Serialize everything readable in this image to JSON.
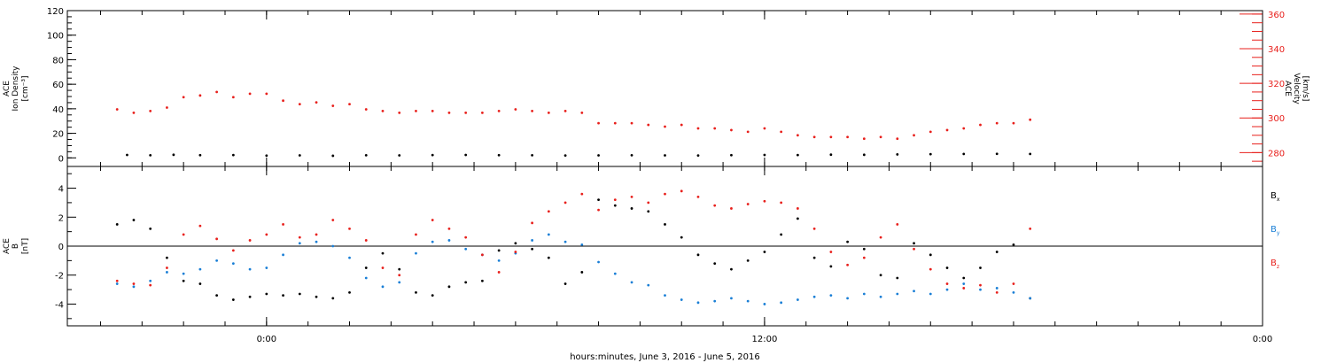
{
  "chart_data": [
    {
      "type": "scatter",
      "ylabel": [
        "ACE",
        "Ion Density",
        "[cm⁻³]"
      ],
      "y2label": [
        "ACE",
        "Velocity",
        "[km/s]"
      ],
      "ylim": [
        -7,
        120
      ],
      "yticks": [
        0,
        20,
        40,
        60,
        80,
        100,
        120
      ],
      "y2lim": [
        272,
        362
      ],
      "y2ticks": [
        280,
        300,
        320,
        340,
        360
      ],
      "series": [
        {
          "color": "#000000",
          "axis": "left",
          "values": [
            [
              -0.42,
              2.4
            ],
            [
              -0.35,
              2.1
            ],
            [
              -0.28,
              2.5
            ],
            [
              -0.2,
              2.2
            ],
            [
              -0.1,
              2.3
            ],
            [
              0.0,
              1.8
            ],
            [
              0.1,
              2.0
            ],
            [
              0.2,
              1.7
            ],
            [
              0.3,
              2.1
            ],
            [
              0.4,
              2.0
            ],
            [
              0.5,
              2.3
            ],
            [
              0.6,
              2.4
            ],
            [
              0.7,
              2.2
            ],
            [
              0.8,
              2.1
            ],
            [
              0.9,
              1.9
            ],
            [
              1.0,
              2.0
            ],
            [
              1.1,
              2.1
            ],
            [
              1.2,
              2.0
            ],
            [
              1.3,
              1.9
            ],
            [
              1.4,
              2.2
            ],
            [
              1.5,
              2.4
            ],
            [
              1.6,
              2.3
            ],
            [
              1.7,
              2.6
            ],
            [
              1.8,
              2.5
            ],
            [
              1.9,
              2.8
            ],
            [
              2.0,
              3.0
            ],
            [
              2.1,
              3.2
            ],
            [
              2.2,
              3.3
            ],
            [
              2.3,
              3.2
            ]
          ]
        },
        {
          "color": "#e8201c",
          "axis": "right",
          "values": [
            [
              -0.45,
              305
            ],
            [
              -0.4,
              303
            ],
            [
              -0.35,
              304
            ],
            [
              -0.3,
              306
            ],
            [
              -0.25,
              312
            ],
            [
              -0.2,
              313
            ],
            [
              -0.15,
              315
            ],
            [
              -0.1,
              312
            ],
            [
              -0.05,
              314
            ],
            [
              0.0,
              314
            ],
            [
              0.05,
              310
            ],
            [
              0.1,
              308
            ],
            [
              0.15,
              309
            ],
            [
              0.2,
              307
            ],
            [
              0.25,
              308
            ],
            [
              0.3,
              305
            ],
            [
              0.35,
              304
            ],
            [
              0.4,
              303
            ],
            [
              0.45,
              304
            ],
            [
              0.5,
              304
            ],
            [
              0.55,
              303
            ],
            [
              0.6,
              303
            ],
            [
              0.65,
              303
            ],
            [
              0.7,
              304
            ],
            [
              0.75,
              305
            ],
            [
              0.8,
              304
            ],
            [
              0.85,
              303
            ],
            [
              0.9,
              304
            ],
            [
              0.95,
              303
            ],
            [
              1.0,
              297
            ],
            [
              1.05,
              297
            ],
            [
              1.1,
              297
            ],
            [
              1.15,
              296
            ],
            [
              1.2,
              295
            ],
            [
              1.25,
              296
            ],
            [
              1.3,
              294
            ],
            [
              1.35,
              294
            ],
            [
              1.4,
              293
            ],
            [
              1.45,
              292
            ],
            [
              1.5,
              294
            ],
            [
              1.55,
              292
            ],
            [
              1.6,
              290
            ],
            [
              1.65,
              289
            ],
            [
              1.7,
              289
            ],
            [
              1.75,
              289
            ],
            [
              1.8,
              288
            ],
            [
              1.85,
              289
            ],
            [
              1.9,
              288
            ],
            [
              1.95,
              290
            ],
            [
              2.0,
              292
            ],
            [
              2.05,
              293
            ],
            [
              2.1,
              294
            ],
            [
              2.15,
              296
            ],
            [
              2.2,
              297
            ],
            [
              2.25,
              297
            ],
            [
              2.3,
              299
            ]
          ]
        }
      ]
    },
    {
      "type": "scatter",
      "ylabel": [
        "ACE",
        "B",
        "[nT]"
      ],
      "ylim": [
        -5.5,
        5.5
      ],
      "yticks": [
        -4,
        -2,
        0,
        2,
        4
      ],
      "legend": [
        {
          "label": "B",
          "sub": "x",
          "color": "#000000"
        },
        {
          "label": "B",
          "sub": "y",
          "color": "#1a7fd6"
        },
        {
          "label": "B",
          "sub": "z",
          "color": "#e8201c"
        }
      ],
      "series": [
        {
          "name": "Bx",
          "color": "#000000",
          "values": [
            [
              -0.45,
              1.5
            ],
            [
              -0.4,
              1.8
            ],
            [
              -0.35,
              1.2
            ],
            [
              -0.3,
              -0.8
            ],
            [
              -0.25,
              -2.4
            ],
            [
              -0.2,
              -2.6
            ],
            [
              -0.15,
              -3.4
            ],
            [
              -0.1,
              -3.7
            ],
            [
              -0.05,
              -3.5
            ],
            [
              0.0,
              -3.3
            ],
            [
              0.05,
              -3.4
            ],
            [
              0.1,
              -3.3
            ],
            [
              0.15,
              -3.5
            ],
            [
              0.2,
              -3.6
            ],
            [
              0.25,
              -3.2
            ],
            [
              0.3,
              -1.5
            ],
            [
              0.35,
              -0.5
            ],
            [
              0.4,
              -1.6
            ],
            [
              0.45,
              -3.2
            ],
            [
              0.5,
              -3.4
            ],
            [
              0.55,
              -2.8
            ],
            [
              0.6,
              -2.5
            ],
            [
              0.65,
              -2.4
            ],
            [
              0.7,
              -0.3
            ],
            [
              0.75,
              0.2
            ],
            [
              0.8,
              -0.2
            ],
            [
              0.85,
              -0.8
            ],
            [
              0.9,
              -2.6
            ],
            [
              0.95,
              -1.8
            ],
            [
              1.0,
              3.2
            ],
            [
              1.05,
              2.8
            ],
            [
              1.1,
              2.6
            ],
            [
              1.15,
              2.4
            ],
            [
              1.2,
              1.5
            ],
            [
              1.25,
              0.6
            ],
            [
              1.3,
              -0.6
            ],
            [
              1.35,
              -1.2
            ],
            [
              1.4,
              -1.6
            ],
            [
              1.45,
              -1.0
            ],
            [
              1.5,
              -0.4
            ],
            [
              1.55,
              0.8
            ],
            [
              1.6,
              1.9
            ],
            [
              1.65,
              -0.8
            ],
            [
              1.7,
              -1.4
            ],
            [
              1.75,
              0.3
            ],
            [
              1.8,
              -0.2
            ],
            [
              1.85,
              -2.0
            ],
            [
              1.9,
              -2.2
            ],
            [
              1.95,
              0.2
            ],
            [
              2.0,
              -0.6
            ],
            [
              2.05,
              -1.5
            ],
            [
              2.1,
              -2.2
            ],
            [
              2.15,
              -1.5
            ],
            [
              2.2,
              -0.4
            ],
            [
              2.25,
              0.1
            ],
            [
              2.3,
              -3.6
            ]
          ]
        },
        {
          "name": "By",
          "color": "#1a7fd6",
          "values": [
            [
              -0.45,
              -2.6
            ],
            [
              -0.4,
              -2.8
            ],
            [
              -0.35,
              -2.4
            ],
            [
              -0.3,
              -1.8
            ],
            [
              -0.25,
              -1.9
            ],
            [
              -0.2,
              -1.6
            ],
            [
              -0.15,
              -1.0
            ],
            [
              -0.1,
              -1.2
            ],
            [
              -0.05,
              -1.6
            ],
            [
              0.0,
              -1.5
            ],
            [
              0.05,
              -0.6
            ],
            [
              0.1,
              0.2
            ],
            [
              0.15,
              0.3
            ],
            [
              0.2,
              0.0
            ],
            [
              0.25,
              -0.8
            ],
            [
              0.3,
              -2.2
            ],
            [
              0.35,
              -2.8
            ],
            [
              0.4,
              -2.5
            ],
            [
              0.45,
              -0.5
            ],
            [
              0.5,
              0.3
            ],
            [
              0.55,
              0.4
            ],
            [
              0.6,
              -0.2
            ],
            [
              0.65,
              -0.6
            ],
            [
              0.7,
              -1.0
            ],
            [
              0.75,
              -0.5
            ],
            [
              0.8,
              0.4
            ],
            [
              0.85,
              0.8
            ],
            [
              0.9,
              0.3
            ],
            [
              0.95,
              0.1
            ],
            [
              1.0,
              -1.1
            ],
            [
              1.05,
              -1.9
            ],
            [
              1.1,
              -2.5
            ],
            [
              1.15,
              -2.7
            ],
            [
              1.2,
              -3.4
            ],
            [
              1.25,
              -3.7
            ],
            [
              1.3,
              -3.9
            ],
            [
              1.35,
              -3.8
            ],
            [
              1.4,
              -3.6
            ],
            [
              1.45,
              -3.8
            ],
            [
              1.5,
              -4.0
            ],
            [
              1.55,
              -3.9
            ],
            [
              1.6,
              -3.7
            ],
            [
              1.65,
              -3.5
            ],
            [
              1.7,
              -3.4
            ],
            [
              1.75,
              -3.6
            ],
            [
              1.8,
              -3.3
            ],
            [
              1.85,
              -3.5
            ],
            [
              1.9,
              -3.3
            ],
            [
              1.95,
              -3.1
            ],
            [
              2.0,
              -3.3
            ],
            [
              2.05,
              -3.0
            ],
            [
              2.1,
              -2.6
            ],
            [
              2.15,
              -3.0
            ],
            [
              2.2,
              -2.9
            ],
            [
              2.25,
              -3.2
            ],
            [
              2.3,
              -3.6
            ]
          ]
        },
        {
          "name": "Bz",
          "color": "#e8201c",
          "values": [
            [
              -0.45,
              -2.4
            ],
            [
              -0.4,
              -2.6
            ],
            [
              -0.35,
              -2.7
            ],
            [
              -0.3,
              -1.5
            ],
            [
              -0.25,
              0.8
            ],
            [
              -0.2,
              1.4
            ],
            [
              -0.15,
              0.5
            ],
            [
              -0.1,
              -0.3
            ],
            [
              -0.05,
              0.4
            ],
            [
              0.0,
              0.8
            ],
            [
              0.05,
              1.5
            ],
            [
              0.1,
              0.6
            ],
            [
              0.15,
              0.8
            ],
            [
              0.2,
              1.8
            ],
            [
              0.25,
              1.2
            ],
            [
              0.3,
              0.4
            ],
            [
              0.35,
              -1.5
            ],
            [
              0.4,
              -2.0
            ],
            [
              0.45,
              0.8
            ],
            [
              0.5,
              1.8
            ],
            [
              0.55,
              1.2
            ],
            [
              0.6,
              0.6
            ],
            [
              0.65,
              -0.6
            ],
            [
              0.7,
              -1.8
            ],
            [
              0.75,
              -0.4
            ],
            [
              0.8,
              1.6
            ],
            [
              0.85,
              2.4
            ],
            [
              0.9,
              3.0
            ],
            [
              0.95,
              3.6
            ],
            [
              1.0,
              2.5
            ],
            [
              1.05,
              3.2
            ],
            [
              1.1,
              3.4
            ],
            [
              1.15,
              3.0
            ],
            [
              1.2,
              3.6
            ],
            [
              1.25,
              3.8
            ],
            [
              1.3,
              3.4
            ],
            [
              1.35,
              2.8
            ],
            [
              1.4,
              2.6
            ],
            [
              1.45,
              2.9
            ],
            [
              1.5,
              3.1
            ],
            [
              1.55,
              3.0
            ],
            [
              1.6,
              2.6
            ],
            [
              1.65,
              1.2
            ],
            [
              1.7,
              -0.4
            ],
            [
              1.75,
              -1.3
            ],
            [
              1.8,
              -0.8
            ],
            [
              1.85,
              0.6
            ],
            [
              1.9,
              1.5
            ],
            [
              1.95,
              -0.2
            ],
            [
              2.0,
              -1.6
            ],
            [
              2.05,
              -2.6
            ],
            [
              2.1,
              -2.9
            ],
            [
              2.15,
              -2.7
            ],
            [
              2.2,
              -3.2
            ],
            [
              2.25,
              -2.6
            ],
            [
              2.3,
              1.2
            ]
          ]
        }
      ]
    }
  ],
  "xaxis": {
    "label": "hours:minutes, June  3, 2016 - June  5, 2016",
    "ticks": [
      {
        "value": 0.0,
        "label": "0:00"
      },
      {
        "value": 1.5,
        "label": "12:00"
      },
      {
        "value": 3.0,
        "label": "0:00"
      }
    ]
  }
}
